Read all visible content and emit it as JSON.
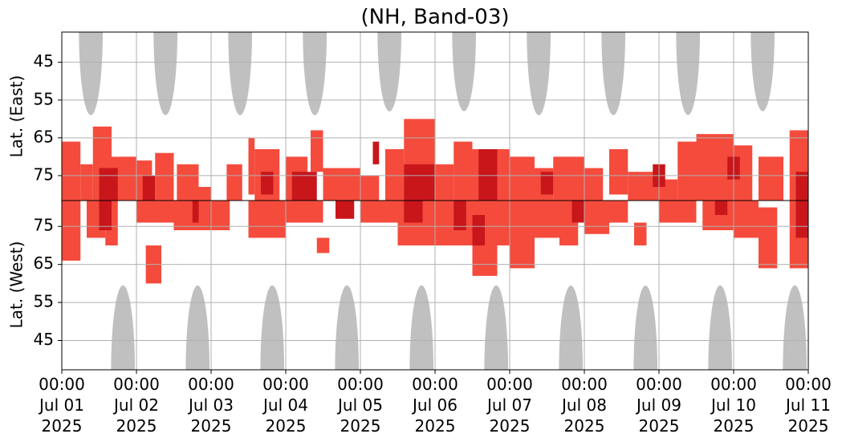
{
  "chart_data": [
    {
      "type": "heatmap",
      "title": "(NH, Band-03)",
      "y_label": "Lat. (East)",
      "y_inverted": true,
      "xlim": [
        "2025-07-01T00:00",
        "2025-07-11T00:00"
      ],
      "ylim": [
        37,
        81.6
      ],
      "yticks": [
        45,
        55,
        65,
        75
      ],
      "grid": true,
      "arches": {
        "color": "#c0c0c0",
        "x0": [
          "2025-07-01T05:30",
          "2025-07-02T05:30",
          "2025-07-03T05:30",
          "2025-07-04T05:30",
          "2025-07-05T05:30",
          "2025-07-06T05:30",
          "2025-07-07T05:30",
          "2025-07-08T05:30",
          "2025-07-09T05:30",
          "2025-07-10T05:30"
        ],
        "x1": [
          "2025-07-01T13:10",
          "2025-07-02T13:10",
          "2025-07-03T13:10",
          "2025-07-04T13:10",
          "2025-07-05T13:10",
          "2025-07-06T13:10",
          "2025-07-07T13:10",
          "2025-07-08T13:10",
          "2025-07-09T13:10",
          "2025-07-10T13:10"
        ],
        "lat": [
          59,
          59,
          59,
          59,
          58,
          58,
          59,
          59,
          59,
          58
        ]
      },
      "series": [
        {
          "color": "#f44b3c",
          "x0": [
            "2025-07-01T00:00",
            "2025-07-01T06:00",
            "2025-07-01T10:00",
            "2025-07-01T16:00",
            "2025-07-02T00:00",
            "2025-07-02T06:00",
            "2025-07-02T13:00",
            "2025-07-02T20:00",
            "2025-07-03T05:00",
            "2025-07-03T12:00",
            "2025-07-03T14:00",
            "2025-07-04T00:00",
            "2025-07-04T08:00",
            "2025-07-04T12:00",
            "2025-07-05T00:00",
            "2025-07-05T08:00",
            "2025-07-05T14:00",
            "2025-07-06T00:00",
            "2025-07-06T06:00",
            "2025-07-06T12:00",
            "2025-07-07T00:00",
            "2025-07-07T08:00",
            "2025-07-07T14:00",
            "2025-07-08T00:00",
            "2025-07-08T08:00",
            "2025-07-08T14:00",
            "2025-07-09T00:00",
            "2025-07-09T06:00",
            "2025-07-09T12:00",
            "2025-07-10T00:00",
            "2025-07-10T08:00",
            "2025-07-10T18:00"
          ],
          "x1": [
            "2025-07-01T06:00",
            "2025-07-01T10:00",
            "2025-07-01T16:00",
            "2025-07-02T00:00",
            "2025-07-02T05:00",
            "2025-07-02T12:00",
            "2025-07-02T20:00",
            "2025-07-03T00:00",
            "2025-07-03T10:00",
            "2025-07-03T14:00",
            "2025-07-03T22:00",
            "2025-07-04T07:00",
            "2025-07-04T12:00",
            "2025-07-05T00:00",
            "2025-07-05T06:00",
            "2025-07-05T14:00",
            "2025-07-06T00:00",
            "2025-07-06T06:00",
            "2025-07-06T12:00",
            "2025-07-07T00:00",
            "2025-07-07T08:00",
            "2025-07-07T14:00",
            "2025-07-08T00:00",
            "2025-07-08T06:00",
            "2025-07-08T14:00",
            "2025-07-09T00:00",
            "2025-07-09T06:00",
            "2025-07-09T12:00",
            "2025-07-10T00:00",
            "2025-07-10T06:00",
            "2025-07-10T16:00",
            "2025-07-11T00:00"
          ],
          "lat0": [
            66,
            72,
            62,
            70,
            71,
            69,
            72,
            78,
            72,
            65,
            68,
            70,
            63,
            73,
            75,
            68,
            60,
            72,
            66,
            68,
            70,
            73,
            70,
            73,
            68,
            74,
            76,
            66,
            64,
            67,
            70,
            63
          ],
          "lat1": [
            81.6,
            81.6,
            81.6,
            81.6,
            81.6,
            81.6,
            81.6,
            81.6,
            81.6,
            80,
            81.6,
            81.6,
            74,
            81.6,
            81.6,
            81.6,
            81.6,
            81.6,
            81.6,
            81.6,
            81.6,
            81.6,
            81.6,
            81.6,
            80,
            81.6,
            81.6,
            81.6,
            81.6,
            81.6,
            81.6,
            81.6
          ]
        },
        {
          "color": "#c8161b",
          "x0": [
            "2025-07-01T12:00",
            "2025-07-02T02:00",
            "2025-07-03T16:00",
            "2025-07-04T02:00",
            "2025-07-05T04:00",
            "2025-07-05T14:00",
            "2025-07-06T14:00",
            "2025-07-07T10:00",
            "2025-07-08T22:00",
            "2025-07-09T22:00",
            "2025-07-10T20:00"
          ],
          "x1": [
            "2025-07-01T18:00",
            "2025-07-02T06:00",
            "2025-07-03T20:00",
            "2025-07-04T10:00",
            "2025-07-05T06:00",
            "2025-07-06T00:00",
            "2025-07-06T20:00",
            "2025-07-07T14:00",
            "2025-07-09T02:00",
            "2025-07-10T02:00",
            "2025-07-11T00:00"
          ],
          "lat0": [
            73,
            75,
            74,
            74,
            66,
            72,
            68,
            74,
            72,
            70,
            74
          ],
          "lat1": [
            81.6,
            81.6,
            80,
            81.6,
            72,
            81.6,
            81.6,
            80,
            78,
            76,
            81.6
          ]
        }
      ]
    },
    {
      "type": "heatmap",
      "y_label": "Lat. (West)",
      "y_inverted": false,
      "xlim": [
        "2025-07-01T00:00",
        "2025-07-11T00:00"
      ],
      "ylim": [
        37.3,
        81.8
      ],
      "yticks": [
        45,
        55,
        65,
        75
      ],
      "grid": true,
      "xticks": [
        {
          "value": "2025-07-01T00:00",
          "label": "00:00\nJul 01\n2025"
        },
        {
          "value": "2025-07-02T00:00",
          "label": "00:00\nJul 02\n2025"
        },
        {
          "value": "2025-07-03T00:00",
          "label": "00:00\nJul 03\n2025"
        },
        {
          "value": "2025-07-04T00:00",
          "label": "00:00\nJul 04\n2025"
        },
        {
          "value": "2025-07-05T00:00",
          "label": "00:00\nJul 05\n2025"
        },
        {
          "value": "2025-07-06T00:00",
          "label": "00:00\nJul 06\n2025"
        },
        {
          "value": "2025-07-07T00:00",
          "label": "00:00\nJul 07\n2025"
        },
        {
          "value": "2025-07-08T00:00",
          "label": "00:00\nJul 08\n2025"
        },
        {
          "value": "2025-07-09T00:00",
          "label": "00:00\nJul 09\n2025"
        },
        {
          "value": "2025-07-10T00:00",
          "label": "00:00\nJul 10\n2025"
        },
        {
          "value": "2025-07-11T00:00",
          "label": "00:00\nJul 11\n2025"
        }
      ],
      "arches": {
        "color": "#c0c0c0",
        "x0": [
          "2025-07-01T15:50",
          "2025-07-02T15:50",
          "2025-07-03T15:50",
          "2025-07-04T15:50",
          "2025-07-05T15:50",
          "2025-07-06T15:50",
          "2025-07-07T15:50",
          "2025-07-08T15:50",
          "2025-07-09T15:50",
          "2025-07-10T15:50"
        ],
        "x1": [
          "2025-07-01T23:30",
          "2025-07-02T23:30",
          "2025-07-03T23:30",
          "2025-07-04T23:30",
          "2025-07-05T23:30",
          "2025-07-06T23:30",
          "2025-07-07T23:30",
          "2025-07-08T23:30",
          "2025-07-09T23:30",
          "2025-07-10T23:30"
        ],
        "lat": [
          59.5,
          59.5,
          59.5,
          59.5,
          59.5,
          59.5,
          59.5,
          59.5,
          59.5,
          59.5
        ]
      },
      "series": [
        {
          "color": "#f44b3c",
          "x0": [
            "2025-07-01T00:00",
            "2025-07-01T08:00",
            "2025-07-01T14:00",
            "2025-07-02T00:00",
            "2025-07-02T03:00",
            "2025-07-02T12:00",
            "2025-07-03T00:00",
            "2025-07-03T12:00",
            "2025-07-04T00:00",
            "2025-07-04T10:00",
            "2025-07-05T00:00",
            "2025-07-05T12:00",
            "2025-07-06T00:00",
            "2025-07-06T12:00",
            "2025-07-06T20:00",
            "2025-07-07T00:00",
            "2025-07-07T08:00",
            "2025-07-07T16:00",
            "2025-07-08T00:00",
            "2025-07-08T08:00",
            "2025-07-08T16:00",
            "2025-07-09T00:00",
            "2025-07-09T14:00",
            "2025-07-10T00:00",
            "2025-07-10T08:00",
            "2025-07-10T18:00"
          ],
          "x1": [
            "2025-07-01T06:00",
            "2025-07-01T14:00",
            "2025-07-01T18:00",
            "2025-07-02T12:00",
            "2025-07-02T08:00",
            "2025-07-03T00:00",
            "2025-07-03T06:00",
            "2025-07-04T00:00",
            "2025-07-04T12:00",
            "2025-07-04T14:00",
            "2025-07-05T12:00",
            "2025-07-06T00:00",
            "2025-07-06T12:00",
            "2025-07-06T20:00",
            "2025-07-07T00:00",
            "2025-07-07T08:00",
            "2025-07-07T16:00",
            "2025-07-07T22:00",
            "2025-07-08T08:00",
            "2025-07-08T14:00",
            "2025-07-08T20:00",
            "2025-07-09T12:00",
            "2025-07-10T00:00",
            "2025-07-10T08:00",
            "2025-07-10T14:00",
            "2025-07-11T00:00"
          ],
          "lat0": [
            66,
            72,
            70,
            76,
            60,
            74,
            74,
            72,
            76,
            68,
            76,
            70,
            70,
            62,
            70,
            64,
            72,
            70,
            73,
            76,
            70,
            76,
            74,
            72,
            64,
            64
          ],
          "lat1": [
            81.8,
            81.8,
            81.8,
            81.8,
            70,
            81.8,
            81.8,
            81.8,
            81.8,
            72,
            81.8,
            81.8,
            81.8,
            81.8,
            81.8,
            81.8,
            81.8,
            81.8,
            81.8,
            81.8,
            76,
            81.8,
            81.8,
            81.8,
            80,
            81.8
          ]
        },
        {
          "color": "#c8161b",
          "x0": [
            "2025-07-01T12:00",
            "2025-07-02T18:00",
            "2025-07-04T16:00",
            "2025-07-05T14:00",
            "2025-07-06T06:00",
            "2025-07-06T12:00",
            "2025-07-07T20:00",
            "2025-07-09T18:00",
            "2025-07-10T20:00"
          ],
          "x1": [
            "2025-07-01T16:00",
            "2025-07-02T20:00",
            "2025-07-04T22:00",
            "2025-07-05T20:00",
            "2025-07-06T10:00",
            "2025-07-06T16:00",
            "2025-07-08T00:00",
            "2025-07-09T22:00",
            "2025-07-11T00:00"
          ],
          "lat0": [
            74,
            76,
            77,
            76,
            74,
            70,
            76,
            78,
            72
          ],
          "lat1": [
            81.8,
            81.8,
            81.8,
            81.8,
            81.8,
            78,
            81.8,
            81.8,
            81.8
          ]
        }
      ]
    }
  ]
}
